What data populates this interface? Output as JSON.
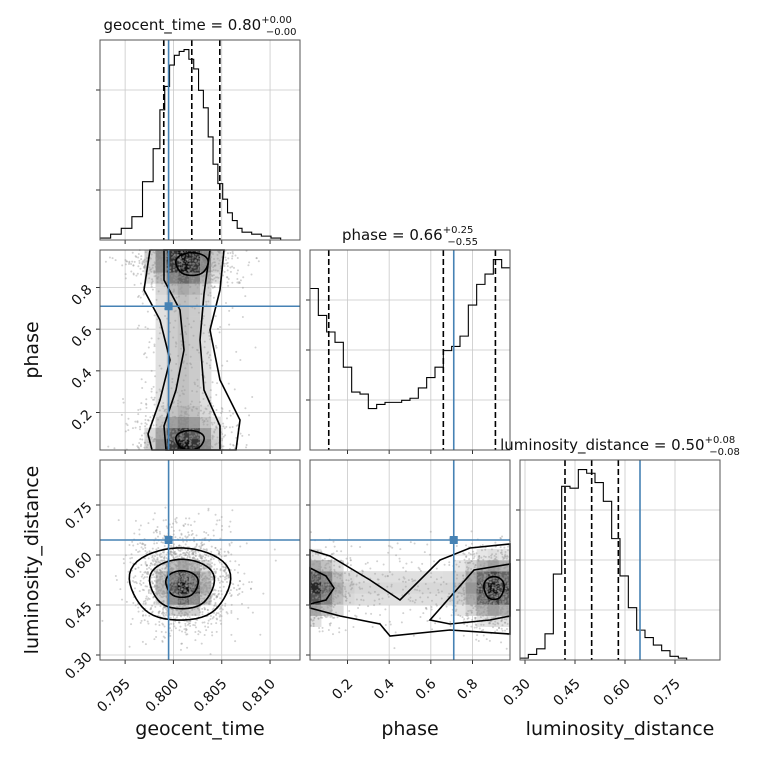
{
  "chart_data": {
    "type": "corner",
    "parameters": [
      "geocent_time",
      "phase",
      "luminosity_distance"
    ],
    "titles": [
      {
        "param": "geocent_time",
        "value": "0.80",
        "plus": "+0.00",
        "minus": "−0.00"
      },
      {
        "param": "phase",
        "value": "0.66",
        "plus": "+0.25",
        "minus": "−0.55"
      },
      {
        "param": "luminosity_distance",
        "value": "0.50",
        "plus": "+0.08",
        "minus": "−0.08"
      }
    ],
    "ranges": {
      "geocent_time": [
        0.7924,
        0.8131
      ],
      "phase": [
        0.02,
        0.98
      ],
      "luminosity_distance": [
        0.285,
        0.885
      ]
    },
    "ticks": {
      "geocent_time": {
        "values": [
          0.795,
          0.8,
          0.805,
          0.81
        ],
        "labels": [
          "0.795",
          "0.800",
          "0.805",
          "0.810"
        ]
      },
      "phase": {
        "values": [
          0.2,
          0.4,
          0.6,
          0.8
        ],
        "labels": [
          "0.2",
          "0.4",
          "0.6",
          "0.8"
        ]
      },
      "luminosity_distance": {
        "values": [
          0.3,
          0.45,
          0.6,
          0.75
        ],
        "labels": [
          "0.30",
          "0.45",
          "0.60",
          "0.75"
        ]
      }
    },
    "truths": {
      "geocent_time": 0.7995,
      "phase": 0.71,
      "luminosity_distance": 0.645
    },
    "quantiles": {
      "geocent_time": [
        0.799,
        0.8019,
        0.8048
      ],
      "phase": [
        0.11,
        0.66,
        0.91
      ],
      "luminosity_distance": [
        0.42,
        0.5,
        0.58
      ]
    },
    "hist_geocent_time": {
      "edges": [
        0.7924,
        0.7935,
        0.7946,
        0.7957,
        0.7968,
        0.7979,
        0.7986,
        0.7991,
        0.7996,
        0.8001,
        0.8006,
        0.8011,
        0.8016,
        0.8021,
        0.8026,
        0.8031,
        0.8036,
        0.8041,
        0.8046,
        0.8051,
        0.8056,
        0.8061,
        0.8066,
        0.8071,
        0.8081,
        0.8091,
        0.8101,
        0.8111,
        0.8131
      ],
      "counts": [
        1,
        3,
        6,
        12,
        30,
        47,
        67,
        79,
        90,
        95,
        97,
        98,
        93,
        88,
        77,
        68,
        53,
        39,
        29,
        21,
        14,
        10,
        6,
        4,
        3,
        2,
        1,
        0
      ]
    },
    "hist_phase": {
      "edges": [
        0.02,
        0.06,
        0.1,
        0.14,
        0.18,
        0.22,
        0.26,
        0.3,
        0.34,
        0.38,
        0.42,
        0.46,
        0.5,
        0.54,
        0.58,
        0.62,
        0.66,
        0.7,
        0.74,
        0.78,
        0.82,
        0.86,
        0.9,
        0.94,
        0.98
      ],
      "counts": [
        78,
        65,
        57,
        52,
        40,
        28,
        27,
        20,
        22,
        23,
        23,
        24,
        25,
        30,
        35,
        40,
        48,
        50,
        55,
        70,
        80,
        85,
        92,
        88
      ]
    },
    "hist_luminosity_distance": {
      "edges": [
        0.285,
        0.31,
        0.335,
        0.36,
        0.385,
        0.41,
        0.435,
        0.46,
        0.485,
        0.51,
        0.535,
        0.56,
        0.585,
        0.61,
        0.635,
        0.66,
        0.685,
        0.71,
        0.735,
        0.76,
        0.785,
        0.885
      ],
      "counts": [
        1,
        3,
        6,
        14,
        46,
        93,
        92,
        102,
        100,
        95,
        85,
        65,
        45,
        28,
        16,
        12,
        8,
        5,
        2,
        1,
        0
      ]
    }
  }
}
